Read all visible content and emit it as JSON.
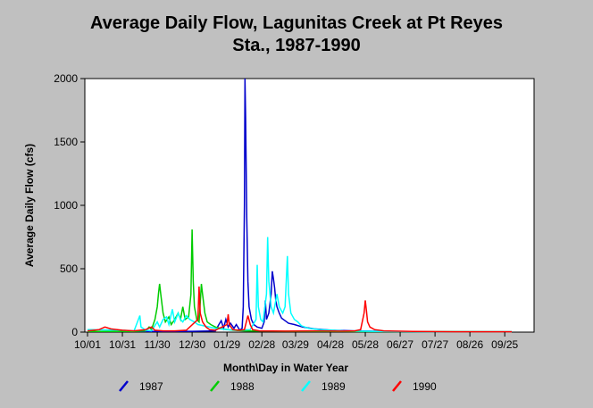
{
  "chart_data": {
    "type": "line",
    "title_line1": "Average Daily Flow, Lagunitas Creek at Pt Reyes",
    "title_line2": "Sta., 1987-1990",
    "xlabel": "Month\\Day in Water Year",
    "ylabel": "Average Daily Flow (cfs)",
    "x_unit": "day of water year (0 = 10/01)",
    "xlim": [
      0,
      365
    ],
    "ylim": [
      0,
      2000
    ],
    "x_ticks": [
      {
        "label": "10/01",
        "day": 0
      },
      {
        "label": "10/31",
        "day": 30
      },
      {
        "label": "11/30",
        "day": 60
      },
      {
        "label": "12/30",
        "day": 90
      },
      {
        "label": "01/29",
        "day": 120
      },
      {
        "label": "02/28",
        "day": 150
      },
      {
        "label": "03/29",
        "day": 179
      },
      {
        "label": "04/28",
        "day": 209
      },
      {
        "label": "05/28",
        "day": 239
      },
      {
        "label": "06/27",
        "day": 269
      },
      {
        "label": "07/27",
        "day": 299
      },
      {
        "label": "08/26",
        "day": 329
      },
      {
        "label": "09/25",
        "day": 359
      }
    ],
    "y_ticks": [
      {
        "label": "0",
        "value": 0
      },
      {
        "label": "500",
        "value": 500
      },
      {
        "label": "1000",
        "value": 1000
      },
      {
        "label": "1500",
        "value": 1500
      },
      {
        "label": "2000",
        "value": 2000
      }
    ],
    "grid": false,
    "legend_position": "bottom",
    "series": [
      {
        "name": "1987",
        "color": "#0000cc",
        "points": [
          [
            0,
            5
          ],
          [
            50,
            5
          ],
          [
            90,
            6
          ],
          [
            110,
            10
          ],
          [
            113,
            60
          ],
          [
            115,
            90
          ],
          [
            117,
            30
          ],
          [
            119,
            100
          ],
          [
            121,
            40
          ],
          [
            123,
            70
          ],
          [
            126,
            30
          ],
          [
            128,
            60
          ],
          [
            131,
            15
          ],
          [
            133,
            30
          ],
          [
            134,
            200
          ],
          [
            135,
            1000
          ],
          [
            135.5,
            2000
          ],
          [
            136,
            1700
          ],
          [
            137,
            900
          ],
          [
            138,
            400
          ],
          [
            139,
            200
          ],
          [
            141,
            100
          ],
          [
            143,
            60
          ],
          [
            146,
            40
          ],
          [
            150,
            30
          ],
          [
            152,
            80
          ],
          [
            153,
            250
          ],
          [
            154,
            100
          ],
          [
            156,
            150
          ],
          [
            158,
            300
          ],
          [
            159,
            480
          ],
          [
            160,
            420
          ],
          [
            161,
            350
          ],
          [
            162,
            250
          ],
          [
            163,
            200
          ],
          [
            165,
            150
          ],
          [
            167,
            110
          ],
          [
            170,
            90
          ],
          [
            173,
            70
          ],
          [
            178,
            60
          ],
          [
            185,
            40
          ],
          [
            195,
            25
          ],
          [
            210,
            15
          ],
          [
            230,
            10
          ],
          [
            260,
            5
          ],
          [
            300,
            3
          ],
          [
            365,
            3
          ]
        ]
      },
      {
        "name": "1988",
        "color": "#00cc00",
        "points": [
          [
            0,
            5
          ],
          [
            40,
            5
          ],
          [
            50,
            10
          ],
          [
            53,
            40
          ],
          [
            55,
            20
          ],
          [
            58,
            100
          ],
          [
            60,
            200
          ],
          [
            61,
            300
          ],
          [
            62,
            380
          ],
          [
            63,
            300
          ],
          [
            65,
            150
          ],
          [
            67,
            80
          ],
          [
            70,
            120
          ],
          [
            72,
            60
          ],
          [
            75,
            100
          ],
          [
            78,
            150
          ],
          [
            80,
            100
          ],
          [
            82,
            200
          ],
          [
            84,
            100
          ],
          [
            87,
            120
          ],
          [
            89,
            300
          ],
          [
            90,
            810
          ],
          [
            91,
            400
          ],
          [
            92,
            200
          ],
          [
            94,
            100
          ],
          [
            96,
            80
          ],
          [
            98,
            380
          ],
          [
            99,
            300
          ],
          [
            101,
            150
          ],
          [
            103,
            80
          ],
          [
            106,
            60
          ],
          [
            110,
            40
          ],
          [
            116,
            25
          ],
          [
            125,
            15
          ],
          [
            135,
            10
          ],
          [
            150,
            8
          ],
          [
            180,
            6
          ],
          [
            240,
            4
          ],
          [
            365,
            3
          ]
        ]
      },
      {
        "name": "1989",
        "color": "#00ffff",
        "points": [
          [
            0,
            20
          ],
          [
            30,
            15
          ],
          [
            40,
            10
          ],
          [
            45,
            130
          ],
          [
            46,
            40
          ],
          [
            50,
            15
          ],
          [
            55,
            10
          ],
          [
            60,
            80
          ],
          [
            62,
            40
          ],
          [
            65,
            100
          ],
          [
            68,
            120
          ],
          [
            70,
            60
          ],
          [
            73,
            180
          ],
          [
            75,
            80
          ],
          [
            78,
            150
          ],
          [
            80,
            100
          ],
          [
            82,
            80
          ],
          [
            85,
            130
          ],
          [
            88,
            100
          ],
          [
            92,
            80
          ],
          [
            95,
            60
          ],
          [
            100,
            50
          ],
          [
            110,
            30
          ],
          [
            120,
            20
          ],
          [
            130,
            15
          ],
          [
            140,
            20
          ],
          [
            145,
            100
          ],
          [
            146,
            530
          ],
          [
            147,
            200
          ],
          [
            149,
            100
          ],
          [
            151,
            80
          ],
          [
            154,
            300
          ],
          [
            155,
            750
          ],
          [
            156,
            400
          ],
          [
            158,
            200
          ],
          [
            160,
            150
          ],
          [
            163,
            300
          ],
          [
            165,
            200
          ],
          [
            168,
            150
          ],
          [
            170,
            200
          ],
          [
            172,
            600
          ],
          [
            173,
            300
          ],
          [
            175,
            150
          ],
          [
            178,
            100
          ],
          [
            181,
            80
          ],
          [
            184,
            50
          ],
          [
            190,
            30
          ],
          [
            200,
            20
          ],
          [
            220,
            10
          ],
          [
            250,
            5
          ],
          [
            300,
            3
          ],
          [
            365,
            3
          ]
        ]
      },
      {
        "name": "1990",
        "color": "#ff0000",
        "points": [
          [
            0,
            10
          ],
          [
            10,
            20
          ],
          [
            15,
            40
          ],
          [
            20,
            25
          ],
          [
            30,
            15
          ],
          [
            40,
            10
          ],
          [
            50,
            20
          ],
          [
            55,
            40
          ],
          [
            58,
            15
          ],
          [
            65,
            10
          ],
          [
            75,
            10
          ],
          [
            85,
            15
          ],
          [
            95,
            100
          ],
          [
            96,
            360
          ],
          [
            97,
            150
          ],
          [
            99,
            80
          ],
          [
            102,
            40
          ],
          [
            105,
            20
          ],
          [
            110,
            15
          ],
          [
            120,
            60
          ],
          [
            121,
            140
          ],
          [
            122,
            60
          ],
          [
            125,
            20
          ],
          [
            130,
            15
          ],
          [
            135,
            20
          ],
          [
            138,
            130
          ],
          [
            140,
            60
          ],
          [
            142,
            20
          ],
          [
            148,
            10
          ],
          [
            170,
            8
          ],
          [
            200,
            10
          ],
          [
            220,
            8
          ],
          [
            230,
            10
          ],
          [
            235,
            20
          ],
          [
            238,
            150
          ],
          [
            239,
            250
          ],
          [
            240,
            170
          ],
          [
            241,
            80
          ],
          [
            243,
            40
          ],
          [
            247,
            20
          ],
          [
            255,
            10
          ],
          [
            280,
            5
          ],
          [
            320,
            3
          ],
          [
            365,
            3
          ]
        ]
      }
    ]
  }
}
